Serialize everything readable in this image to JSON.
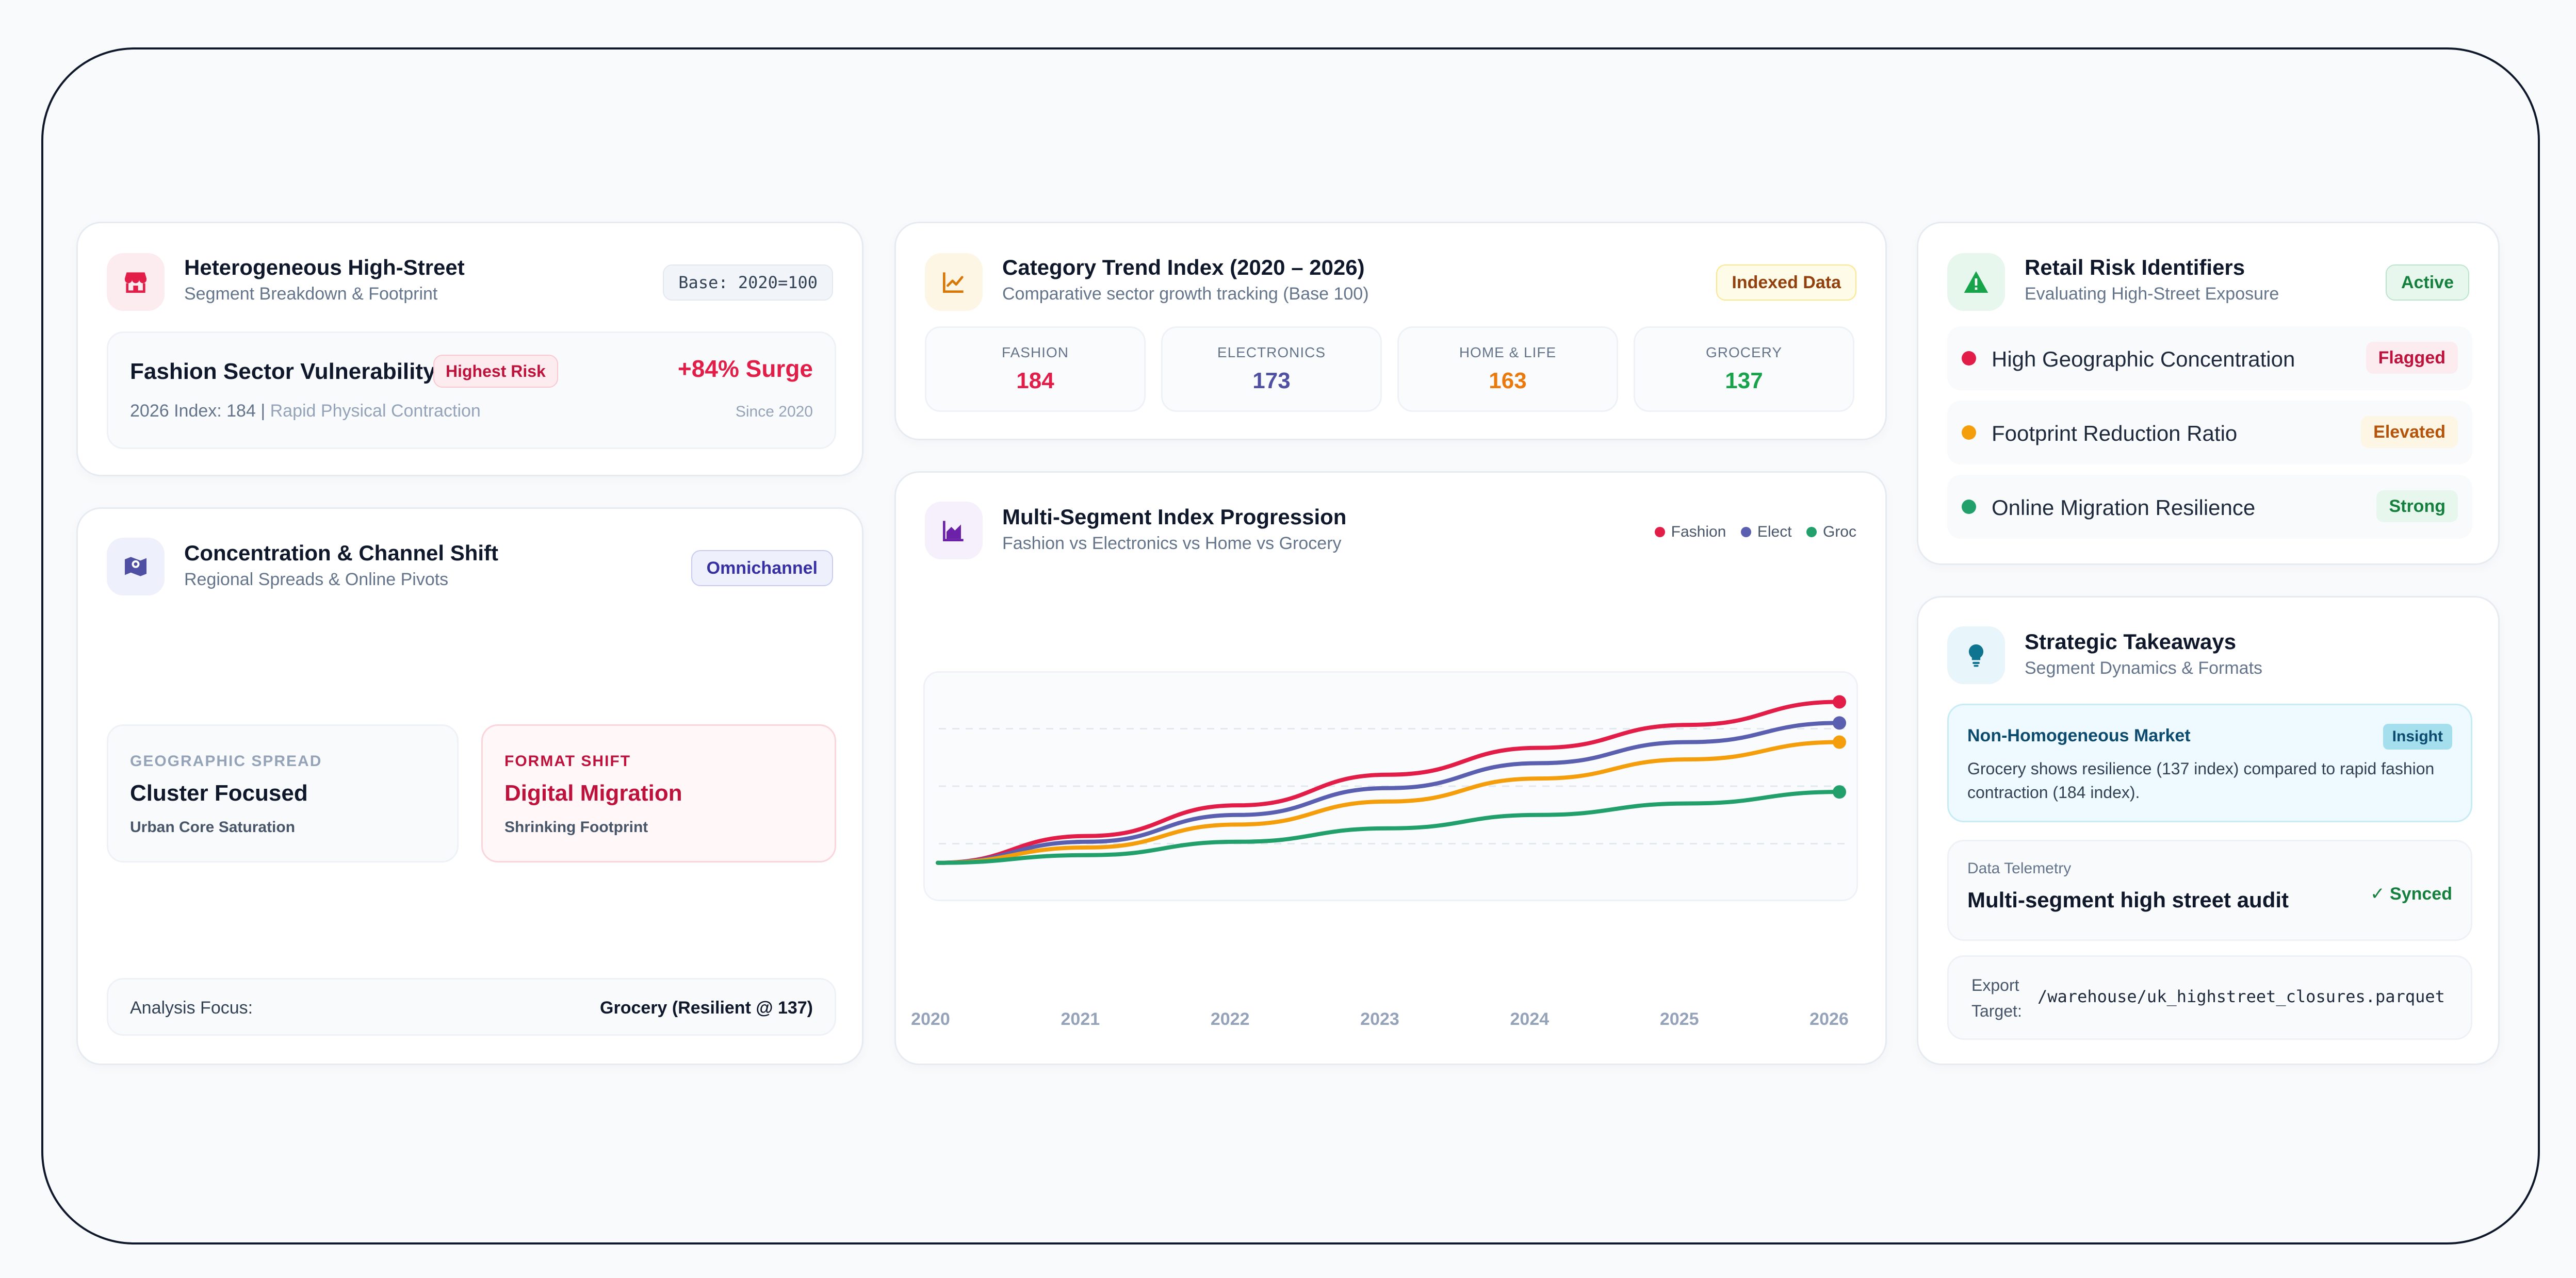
{
  "high_street": {
    "title": "Heterogeneous High-Street",
    "subtitle": "Segment Breakdown & Footprint",
    "base_tag": "Base: 2020=100",
    "fashion_title": "Fashion Sector Vulnerability",
    "risk_badge": "Highest Risk",
    "surge": "+84% Surge",
    "index_line": "2026 Index: 184",
    "index_sep": " | ",
    "index_note": "Rapid Physical Contraction",
    "since": "Since 2020"
  },
  "concentration": {
    "title": "Concentration & Channel Shift",
    "subtitle": "Regional Spreads & Online Pivots",
    "tag": "Omnichannel",
    "geo_label": "GEOGRAPHIC SPREAD",
    "geo_value": "Cluster Focused",
    "geo_note": "Urban Core Saturation",
    "format_label": "FORMAT SHIFT",
    "format_value": "Digital Migration",
    "format_note": "Shrinking Footprint",
    "focus_label": "Analysis Focus:",
    "focus_value": "Grocery (Resilient @ 137)"
  },
  "trend": {
    "title": "Category Trend Index (2020 – 2026)",
    "subtitle": "Comparative sector growth tracking (Base 100)",
    "tag": "Indexed Data",
    "stats": [
      {
        "label": "FASHION",
        "value": "184",
        "color": "#e11d48"
      },
      {
        "label": "ELECTRONICS",
        "value": "173",
        "color": "#4f4fa3"
      },
      {
        "label": "HOME & LIFE",
        "value": "163",
        "color": "#ea7a0c"
      },
      {
        "label": "GROCERY",
        "value": "137",
        "color": "#16a34a"
      }
    ]
  },
  "progression": {
    "title": "Multi-Segment Index Progression",
    "subtitle": "Fashion vs Electronics vs Home vs Grocery",
    "legend": [
      {
        "label": "Fashion",
        "color": "#e11d48"
      },
      {
        "label": "Elect",
        "color": "#5b5fb0"
      },
      {
        "label": "Groc",
        "color": "#22a06b"
      }
    ]
  },
  "chart_data": {
    "type": "line",
    "x": [
      "2020",
      "2021",
      "2022",
      "2023",
      "2024",
      "2025",
      "2026"
    ],
    "ylim": [
      80,
      200
    ],
    "grid": true,
    "series": [
      {
        "name": "Fashion",
        "color": "#e11d48",
        "values": [
          100,
          114,
          130,
          146,
          160,
          172,
          184
        ]
      },
      {
        "name": "Elect",
        "color": "#5b5fb0",
        "values": [
          100,
          111,
          125,
          139,
          152,
          163,
          173
        ]
      },
      {
        "name": "",
        "color": "#f59e0b",
        "values": [
          100,
          108,
          120,
          132,
          144,
          154,
          163
        ]
      },
      {
        "name": "Groc",
        "color": "#22a06b",
        "values": [
          100,
          104,
          111,
          118,
          125,
          131,
          137
        ]
      }
    ]
  },
  "risk": {
    "title": "Retail Risk Identifiers",
    "subtitle": "Evaluating High-Street Exposure",
    "tag": "Active",
    "rows": [
      {
        "label": "High Geographic Concentration",
        "tag": "Flagged",
        "dot": "#e11d48",
        "tag_bg": "#fdecef",
        "tag_fg": "#be123c"
      },
      {
        "label": "Footprint Reduction Ratio",
        "tag": "Elevated",
        "dot": "#f59e0b",
        "tag_bg": "#fef6e4",
        "tag_fg": "#b45309"
      },
      {
        "label": "Online Migration Resilience",
        "tag": "Strong",
        "dot": "#22a06b",
        "tag_bg": "#e8f7ee",
        "tag_fg": "#15803d"
      }
    ]
  },
  "takeaways": {
    "title": "Strategic Takeaways",
    "subtitle": "Segment Dynamics & Formats",
    "insight_title": "Non-Homogeneous Market",
    "insight_tag": "Insight",
    "insight_text": "Grocery shows resilience (137 index) compared to rapid fashion contraction (184 index).",
    "telemetry_label": "Data Telemetry",
    "telemetry_value": "Multi-segment high street audit",
    "synced": "Synced",
    "export_label_1": "Export",
    "export_label_2": "Target:",
    "export_path": "/warehouse/uk_highstreet_closures.parquet"
  }
}
